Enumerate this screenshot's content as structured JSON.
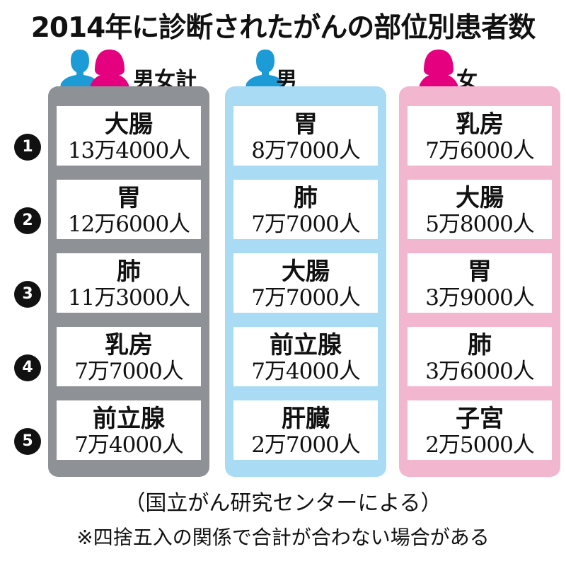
{
  "title": "2014年に診断されたがんの部位別患者数",
  "colors": {
    "total": "#8e9196",
    "male": "#a9dcf4",
    "female": "#f3b6cf",
    "male_icon": "#1d9bd7",
    "female_icon": "#e4007f"
  },
  "ranks": [
    "1",
    "2",
    "3",
    "4",
    "5"
  ],
  "columns": [
    {
      "label": "男女計",
      "items": [
        {
          "organ": "大腸",
          "count": "13万4000人"
        },
        {
          "organ": "胃",
          "count": "12万6000人"
        },
        {
          "organ": "肺",
          "count": "11万3000人"
        },
        {
          "organ": "乳房",
          "count": "7万7000人"
        },
        {
          "organ": "前立腺",
          "count": "7万4000人"
        }
      ]
    },
    {
      "label": "男",
      "items": [
        {
          "organ": "胃",
          "count": "8万7000人"
        },
        {
          "organ": "肺",
          "count": "7万7000人"
        },
        {
          "organ": "大腸",
          "count": "7万7000人"
        },
        {
          "organ": "前立腺",
          "count": "7万4000人"
        },
        {
          "organ": "肝臓",
          "count": "2万7000人"
        }
      ]
    },
    {
      "label": "女",
      "items": [
        {
          "organ": "乳房",
          "count": "7万6000人"
        },
        {
          "organ": "大腸",
          "count": "5万8000人"
        },
        {
          "organ": "胃",
          "count": "3万9000人"
        },
        {
          "organ": "肺",
          "count": "3万6000人"
        },
        {
          "organ": "子宮",
          "count": "2万5000人"
        }
      ]
    }
  ],
  "source": "（国立がん研究センターによる）",
  "note": "※四捨五入の関係で合計が合わない場合がある"
}
